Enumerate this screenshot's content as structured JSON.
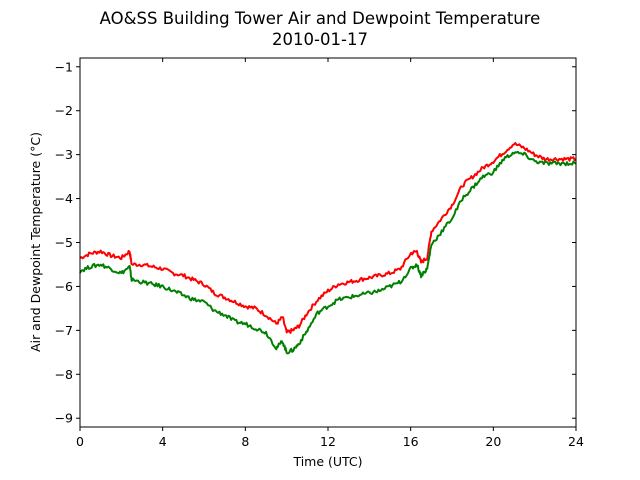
{
  "chart_data": {
    "type": "line",
    "title": "AO&SS Building Tower Air and Dewpoint Temperature",
    "subtitle": "2010-01-17",
    "xlabel": "Time (UTC)",
    "ylabel": "Air and Dewpoint Temperature (°C)",
    "xlim": [
      0,
      24
    ],
    "ylim": [
      -9.2,
      -0.8
    ],
    "xticks": [
      0,
      4,
      8,
      12,
      16,
      20,
      24
    ],
    "yticks": [
      -9,
      -8,
      -7,
      -6,
      -5,
      -4,
      -3,
      -2,
      -1
    ],
    "grid": false,
    "legend": "none",
    "series": [
      {
        "color": "#ff0000",
        "x": [
          0,
          0.5,
          1,
          1.5,
          2,
          2.4,
          2.5,
          3,
          3.5,
          4,
          4.5,
          5,
          5.5,
          6,
          6.5,
          7,
          7.5,
          8,
          8.5,
          9,
          9.5,
          9.8,
          10,
          10.3,
          10.6,
          11,
          11.5,
          12,
          12.5,
          13,
          13.5,
          14,
          14.5,
          15,
          15.5,
          16,
          16.3,
          16.5,
          16.8,
          17,
          17.5,
          18,
          18.5,
          19,
          19.5,
          20,
          20.5,
          21,
          21.5,
          22,
          22.5,
          23,
          23.5,
          24
        ],
        "y": [
          -5.35,
          -5.25,
          -5.2,
          -5.3,
          -5.35,
          -5.2,
          -5.5,
          -5.5,
          -5.55,
          -5.6,
          -5.7,
          -5.75,
          -5.85,
          -5.95,
          -6.15,
          -6.25,
          -6.35,
          -6.45,
          -6.5,
          -6.65,
          -6.85,
          -6.7,
          -7.05,
          -7.0,
          -6.9,
          -6.6,
          -6.3,
          -6.1,
          -5.95,
          -5.9,
          -5.85,
          -5.8,
          -5.75,
          -5.7,
          -5.6,
          -5.25,
          -5.2,
          -5.45,
          -5.35,
          -4.75,
          -4.45,
          -4.15,
          -3.7,
          -3.5,
          -3.3,
          -3.15,
          -2.95,
          -2.75,
          -2.85,
          -3.0,
          -3.1,
          -3.1,
          -3.1,
          -3.1
        ]
      },
      {
        "color": "#008000",
        "x": [
          0,
          0.5,
          1,
          1.5,
          2,
          2.4,
          2.5,
          3,
          3.5,
          4,
          4.5,
          5,
          5.5,
          6,
          6.5,
          7,
          7.5,
          8,
          8.5,
          9,
          9.5,
          9.8,
          10,
          10.3,
          10.6,
          11,
          11.5,
          12,
          12.5,
          13,
          13.5,
          14,
          14.5,
          15,
          15.5,
          16,
          16.3,
          16.5,
          16.8,
          17,
          17.5,
          18,
          18.5,
          19,
          19.5,
          20,
          20.5,
          21,
          21.5,
          22,
          22.5,
          23,
          23.5,
          24
        ],
        "y": [
          -5.65,
          -5.55,
          -5.5,
          -5.6,
          -5.7,
          -5.55,
          -5.85,
          -5.9,
          -5.95,
          -6.0,
          -6.1,
          -6.2,
          -6.3,
          -6.35,
          -6.55,
          -6.65,
          -6.8,
          -6.85,
          -6.95,
          -7.05,
          -7.4,
          -7.25,
          -7.5,
          -7.45,
          -7.3,
          -7.0,
          -6.6,
          -6.45,
          -6.3,
          -6.25,
          -6.2,
          -6.15,
          -6.1,
          -6.0,
          -5.9,
          -5.6,
          -5.5,
          -5.75,
          -5.6,
          -5.05,
          -4.75,
          -4.45,
          -4.0,
          -3.75,
          -3.5,
          -3.4,
          -3.1,
          -2.95,
          -3.0,
          -3.15,
          -3.2,
          -3.2,
          -3.2,
          -3.2
        ]
      }
    ]
  }
}
